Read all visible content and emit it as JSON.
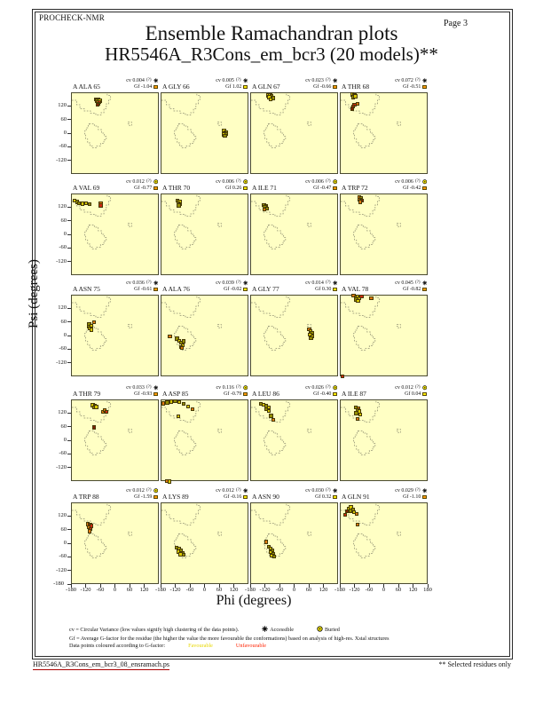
{
  "header": {
    "brand": "PROCHECK-NMR",
    "page_label": "Page  3",
    "title": "Ensemble Ramachandran plots",
    "subtitle": "HR5546A_R3Cons_em_bcr3 (20 models)**"
  },
  "axes": {
    "x_title": "Phi (degrees)",
    "y_title": "Psi (degrees)",
    "x_ticks": [
      -180,
      -120,
      -60,
      0,
      60,
      120
    ],
    "x_end_tick": 180,
    "y_ticks": [
      120,
      60,
      0,
      -60,
      -120
    ],
    "y_end_tick": -180
  },
  "labels": {
    "cv_prefix": "cv",
    "footnote": "(?)",
    "gf_prefix": "Gf"
  },
  "legend": {
    "line1_text": "cv = Circular Variance (low values signify high clustering of the data points).",
    "accessible_label": "Accessible",
    "buried_label": "Buried",
    "line2_text": "Gf = Average G-factor for the residue (the higher the value the more favourable the conformations) based on analysis of high-res. Xstal structures",
    "line3_text": "Data points coloured according to G-factor:",
    "favourable_label": "Favourable",
    "unfavourable_label": "Unfavourable"
  },
  "footer": {
    "filename": "HR5546A_R3Cons_em_bcr3_08_ensramach.ps",
    "note": "** Selected residues only"
  },
  "colors": {
    "plot_bg": "#FFFFC4",
    "contour": "#8f8f72",
    "point_yellow": "#D8C800",
    "point_olive": "#938E00",
    "point_orange": "#E27A10",
    "point_red": "#CF2810",
    "point_darkred": "#801F00",
    "gf_yellow": "#FFEE00",
    "gf_orange": "#FF9900"
  },
  "chart_data": {
    "type": "scatter",
    "x_range": [
      -180,
      180
    ],
    "y_range": [
      -180,
      180
    ],
    "x_label": "Phi (degrees)",
    "y_label": "Psi (degrees)",
    "grid": "off",
    "models_per_plot": 20,
    "plots": [
      {
        "residue": "A ALA 65",
        "cv": "0.004",
        "gf": "-1.04",
        "gf_swatch": "orange",
        "exposure": "accessible",
        "points": [
          [
            -80,
            153,
            "y"
          ],
          [
            -72,
            150,
            "y"
          ],
          [
            -76,
            146,
            "o"
          ],
          [
            -66,
            147,
            "y"
          ],
          [
            -74,
            139,
            "n"
          ],
          [
            -68,
            141,
            "r"
          ],
          [
            -70,
            133,
            "r"
          ],
          [
            -75,
            130,
            "d"
          ]
        ]
      },
      {
        "residue": "A GLY 66",
        "cv": "0.005",
        "gf": "1.02",
        "gf_swatch": "yellow",
        "exposure": "accessible",
        "points": [
          [
            76,
            13,
            "y"
          ],
          [
            83,
            9,
            "o"
          ],
          [
            78,
            4,
            "y"
          ],
          [
            85,
            1,
            "o"
          ],
          [
            74,
            -2,
            "y"
          ],
          [
            80,
            -7,
            "o"
          ]
        ]
      },
      {
        "residue": "A GLN 67",
        "cv": "0.023",
        "gf": "-0.66",
        "gf_swatch": "orange",
        "exposure": "accessible",
        "points": [
          [
            -112,
            170,
            "y"
          ],
          [
            -102,
            172,
            "y"
          ],
          [
            -96,
            166,
            "o"
          ],
          [
            -106,
            162,
            "y"
          ],
          [
            -90,
            158,
            "o"
          ],
          [
            -99,
            153,
            "y"
          ]
        ]
      },
      {
        "residue": "A THR 68",
        "cv": "0.072",
        "gf": "-0.51",
        "gf_swatch": "orange",
        "exposure": "accessible",
        "points": [
          [
            -133,
            174,
            "y"
          ],
          [
            -124,
            170,
            "y"
          ],
          [
            -128,
            163,
            "o"
          ],
          [
            -120,
            166,
            "y"
          ],
          [
            -112,
            133,
            "n"
          ],
          [
            -124,
            128,
            "r"
          ],
          [
            -130,
            122,
            "r"
          ],
          [
            -133,
            112,
            "d"
          ]
        ]
      },
      {
        "residue": "A VAL 69",
        "cv": "0.012",
        "gf": "-0.77",
        "gf_swatch": "orange",
        "exposure": "buried",
        "points": [
          [
            -168,
            152,
            "y"
          ],
          [
            -158,
            147,
            "o"
          ],
          [
            -150,
            142,
            "o"
          ],
          [
            -137,
            139,
            "y"
          ],
          [
            -122,
            141,
            "y"
          ],
          [
            -108,
            137,
            "o"
          ],
          [
            -62,
            142,
            "n"
          ],
          [
            -62,
            131,
            "r"
          ]
        ]
      },
      {
        "residue": "A THR 70",
        "cv": "0.006",
        "gf": "0.26",
        "gf_swatch": "yellow",
        "exposure": "buried",
        "points": [
          [
            -114,
            152,
            "o"
          ],
          [
            -106,
            148,
            "y"
          ],
          [
            -111,
            142,
            "o"
          ],
          [
            -104,
            137,
            "y"
          ],
          [
            -109,
            131,
            "o"
          ]
        ]
      },
      {
        "residue": "A ILE 71",
        "cv": "0.006",
        "gf": "-0.47",
        "gf_swatch": "orange",
        "exposure": "buried",
        "points": [
          [
            -127,
            133,
            "o"
          ],
          [
            -119,
            129,
            "y"
          ],
          [
            -123,
            123,
            "o"
          ],
          [
            -116,
            118,
            "o"
          ],
          [
            -125,
            114,
            "n"
          ]
        ]
      },
      {
        "residue": "A TRP 72",
        "cv": "0.006",
        "gf": "-0.42",
        "gf_swatch": "orange",
        "exposure": "buried",
        "points": [
          [
            -104,
            166,
            "n"
          ],
          [
            -97,
            163,
            "o"
          ],
          [
            -102,
            156,
            "n"
          ],
          [
            -95,
            152,
            "d"
          ],
          [
            -100,
            147,
            "n"
          ]
        ]
      },
      {
        "residue": "A ASN 75",
        "cv": "0.036",
        "gf": "-0.61",
        "gf_swatch": "orange",
        "exposure": "accessible",
        "points": [
          [
            -90,
            62,
            "n"
          ],
          [
            -109,
            54,
            "o"
          ],
          [
            -101,
            48,
            "y"
          ],
          [
            -112,
            42,
            "o"
          ],
          [
            -105,
            35,
            "y"
          ],
          [
            -99,
            29,
            "y"
          ]
        ]
      },
      {
        "residue": "A ALA 76",
        "cv": "0.039",
        "gf": "-0.02",
        "gf_swatch": "yellow",
        "exposure": "accessible",
        "points": [
          [
            -145,
            1,
            "n"
          ],
          [
            -117,
            -10,
            "o"
          ],
          [
            -108,
            -19,
            "y"
          ],
          [
            -89,
            -22,
            "o"
          ],
          [
            -99,
            -28,
            "o"
          ],
          [
            -93,
            -38,
            "y"
          ],
          [
            -101,
            -46,
            "y"
          ],
          [
            -96,
            -52,
            "n"
          ]
        ]
      },
      {
        "residue": "A GLY 77",
        "cv": "0.014",
        "gf": "0.30",
        "gf_swatch": "yellow",
        "exposure": "accessible",
        "points": [
          [
            58,
            31,
            "n"
          ],
          [
            63,
            24,
            "y"
          ],
          [
            69,
            16,
            "o"
          ],
          [
            62,
            8,
            "y"
          ],
          [
            70,
            1,
            "y"
          ],
          [
            66,
            -8,
            "o"
          ]
        ]
      },
      {
        "residue": "A VAL 78",
        "cv": "0.045",
        "gf": "-0.82",
        "gf_swatch": "orange",
        "exposure": "accessible",
        "points": [
          [
            -127,
            179,
            "n"
          ],
          [
            -119,
            173,
            "o"
          ],
          [
            -111,
            177,
            "y"
          ],
          [
            -104,
            169,
            "y"
          ],
          [
            -117,
            163,
            "o"
          ],
          [
            -109,
            156,
            "y"
          ],
          [
            -95,
            176,
            "r"
          ],
          [
            -54,
            168,
            "n"
          ],
          [
            -172,
            -176,
            "r"
          ]
        ]
      },
      {
        "residue": "A THR 79",
        "cv": "0.033",
        "gf": "-0.93",
        "gf_swatch": "orange",
        "exposure": "accessible",
        "points": [
          [
            -95,
            158,
            "y"
          ],
          [
            -86,
            154,
            "y"
          ],
          [
            -90,
            148,
            "o"
          ],
          [
            -80,
            150,
            "y"
          ],
          [
            -52,
            128,
            "n"
          ],
          [
            -45,
            138,
            "n"
          ],
          [
            -38,
            130,
            "r"
          ],
          [
            -88,
            60,
            "d"
          ]
        ]
      },
      {
        "residue": "A ASP 85",
        "cv": "0.116",
        "gf": "-0.79",
        "gf_swatch": "orange",
        "exposure": "buried",
        "points": [
          [
            -172,
            166,
            "n"
          ],
          [
            -156,
            170,
            "o"
          ],
          [
            -140,
            174,
            "y"
          ],
          [
            -124,
            176,
            "o"
          ],
          [
            -108,
            172,
            "y"
          ],
          [
            -90,
            165,
            "o"
          ],
          [
            -70,
            152,
            "y"
          ],
          [
            -52,
            140,
            "n"
          ],
          [
            -112,
            110,
            "y"
          ],
          [
            -158,
            -177,
            "n"
          ],
          [
            -148,
            -178,
            "y"
          ]
        ]
      },
      {
        "residue": "A LEU 86",
        "cv": "0.026",
        "gf": "-0.40",
        "gf_swatch": "yellow",
        "exposure": "buried",
        "points": [
          [
            -140,
            165,
            "o"
          ],
          [
            -128,
            160,
            "y"
          ],
          [
            -118,
            154,
            "o"
          ],
          [
            -108,
            148,
            "y"
          ],
          [
            -118,
            140,
            "o"
          ],
          [
            -108,
            132,
            "y"
          ],
          [
            -98,
            112,
            "o"
          ],
          [
            -90,
            93,
            "n"
          ]
        ]
      },
      {
        "residue": "A ILE 87",
        "cv": "0.012",
        "gf": "0.04",
        "gf_swatch": "yellow",
        "exposure": "buried",
        "points": [
          [
            -118,
            148,
            "o"
          ],
          [
            -108,
            144,
            "n"
          ],
          [
            -112,
            137,
            "o"
          ],
          [
            -103,
            131,
            "y"
          ],
          [
            -116,
            124,
            "o"
          ],
          [
            -101,
            117,
            "y"
          ],
          [
            -110,
            98,
            "n"
          ]
        ]
      },
      {
        "residue": "A TRP 88",
        "cv": "0.012",
        "gf": "-1.59",
        "gf_swatch": "orange",
        "exposure": "buried",
        "points": [
          [
            -115,
            88,
            "n"
          ],
          [
            -106,
            84,
            "d"
          ],
          [
            -99,
            80,
            "r"
          ],
          [
            -110,
            74,
            "n"
          ],
          [
            -103,
            66,
            "r"
          ],
          [
            -108,
            56,
            "n"
          ]
        ]
      },
      {
        "residue": "A LYS 89",
        "cv": "0.012",
        "gf": "-0.16",
        "gf_swatch": "yellow",
        "exposure": "accessible",
        "points": [
          [
            -118,
            -16,
            "o"
          ],
          [
            -108,
            -22,
            "y"
          ],
          [
            -100,
            -28,
            "o"
          ],
          [
            -110,
            -34,
            "y"
          ],
          [
            -95,
            -38,
            "o"
          ],
          [
            -102,
            -45,
            "y"
          ],
          [
            -90,
            -48,
            "o"
          ]
        ]
      },
      {
        "residue": "A ASN 90",
        "cv": "0.030",
        "gf": "0.32",
        "gf_swatch": "yellow",
        "exposure": "accessible",
        "points": [
          [
            -118,
            10,
            "n"
          ],
          [
            -108,
            -12,
            "o"
          ],
          [
            -100,
            -20,
            "y"
          ],
          [
            -92,
            -28,
            "o"
          ],
          [
            -100,
            -36,
            "y"
          ],
          [
            -88,
            -42,
            "o"
          ],
          [
            -95,
            -50,
            "y"
          ],
          [
            -85,
            -55,
            "o"
          ]
        ]
      },
      {
        "residue": "A GLN 91",
        "cv": "0.029",
        "gf": "-1.10",
        "gf_swatch": "orange",
        "exposure": "accessible",
        "points": [
          [
            -162,
            130,
            "r"
          ],
          [
            -154,
            144,
            "d"
          ],
          [
            -148,
            156,
            "y"
          ],
          [
            -138,
            162,
            "y"
          ],
          [
            -140,
            146,
            "o"
          ],
          [
            -130,
            152,
            "o"
          ],
          [
            -125,
            142,
            "y"
          ],
          [
            -115,
            134,
            "n"
          ],
          [
            -110,
            86,
            "n"
          ]
        ]
      }
    ]
  }
}
